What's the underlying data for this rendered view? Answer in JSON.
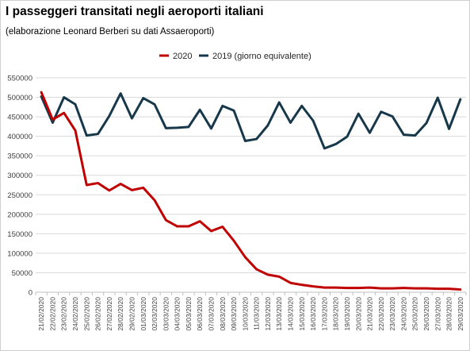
{
  "title": "I passeggeri transitati negli aeroporti italiani",
  "subtitle": "(elaborazione Leonard Berberi su dati Assaeroporti)",
  "chart_data": {
    "type": "line",
    "title": "I passeggeri transitati negli aeroporti italiani",
    "subtitle": "(elaborazione Leonard Berberi su dati Assaeroporti)",
    "xlabel": "",
    "ylabel": "",
    "ylim": [
      0,
      550000
    ],
    "yticks": [
      0,
      50000,
      100000,
      150000,
      200000,
      250000,
      300000,
      350000,
      400000,
      450000,
      500000,
      550000
    ],
    "ytick_labels": [
      "0",
      "50000",
      "100000",
      "150000",
      "200000",
      "250000",
      "300000",
      "350000",
      "400000",
      "450000",
      "500000",
      "550000"
    ],
    "grid": true,
    "legend_position": "top-center",
    "categories": [
      "21/02/2020",
      "22/02/2020",
      "23/02/2020",
      "24/02/2020",
      "25/02/2020",
      "26/02/2020",
      "27/02/2020",
      "28/02/2020",
      "29/02/2020",
      "01/03/2020",
      "02/03/2020",
      "03/03/2020",
      "04/03/2020",
      "05/03/2020",
      "06/03/2020",
      "07/03/2020",
      "08/03/2020",
      "09/03/2020",
      "10/03/2020",
      "11/03/2020",
      "12/03/2020",
      "13/03/2020",
      "14/03/2020",
      "15/03/2020",
      "16/03/2020",
      "17/03/2020",
      "18/03/2020",
      "19/03/2020",
      "20/03/2020",
      "21/03/2020",
      "22/03/2020",
      "23/03/2020",
      "24/03/2020",
      "25/03/2020",
      "26/03/2020",
      "27/03/2020",
      "28/03/2020",
      "29/03/2020"
    ],
    "series": [
      {
        "name": "2020",
        "color": "#c00000",
        "values": [
          513000,
          443000,
          460000,
          415000,
          275000,
          280000,
          261000,
          278000,
          262000,
          268000,
          236000,
          185000,
          169000,
          169000,
          182000,
          157000,
          168000,
          132000,
          90000,
          59000,
          45000,
          40000,
          24000,
          19000,
          15000,
          12000,
          12000,
          11000,
          11000,
          12000,
          10000,
          10000,
          11000,
          10000,
          10000,
          9000,
          9000,
          7000
        ]
      },
      {
        "name": "2019 (giorno equivalente)",
        "color": "#17384a",
        "values": [
          502000,
          435000,
          500000,
          482000,
          402000,
          406000,
          452000,
          510000,
          446000,
          498000,
          482000,
          421000,
          422000,
          424000,
          468000,
          420000,
          478000,
          466000,
          388000,
          393000,
          428000,
          487000,
          435000,
          478000,
          440000,
          369000,
          380000,
          399000,
          458000,
          409000,
          463000,
          451000,
          404000,
          402000,
          434000,
          499000,
          419000,
          495000
        ]
      }
    ]
  }
}
